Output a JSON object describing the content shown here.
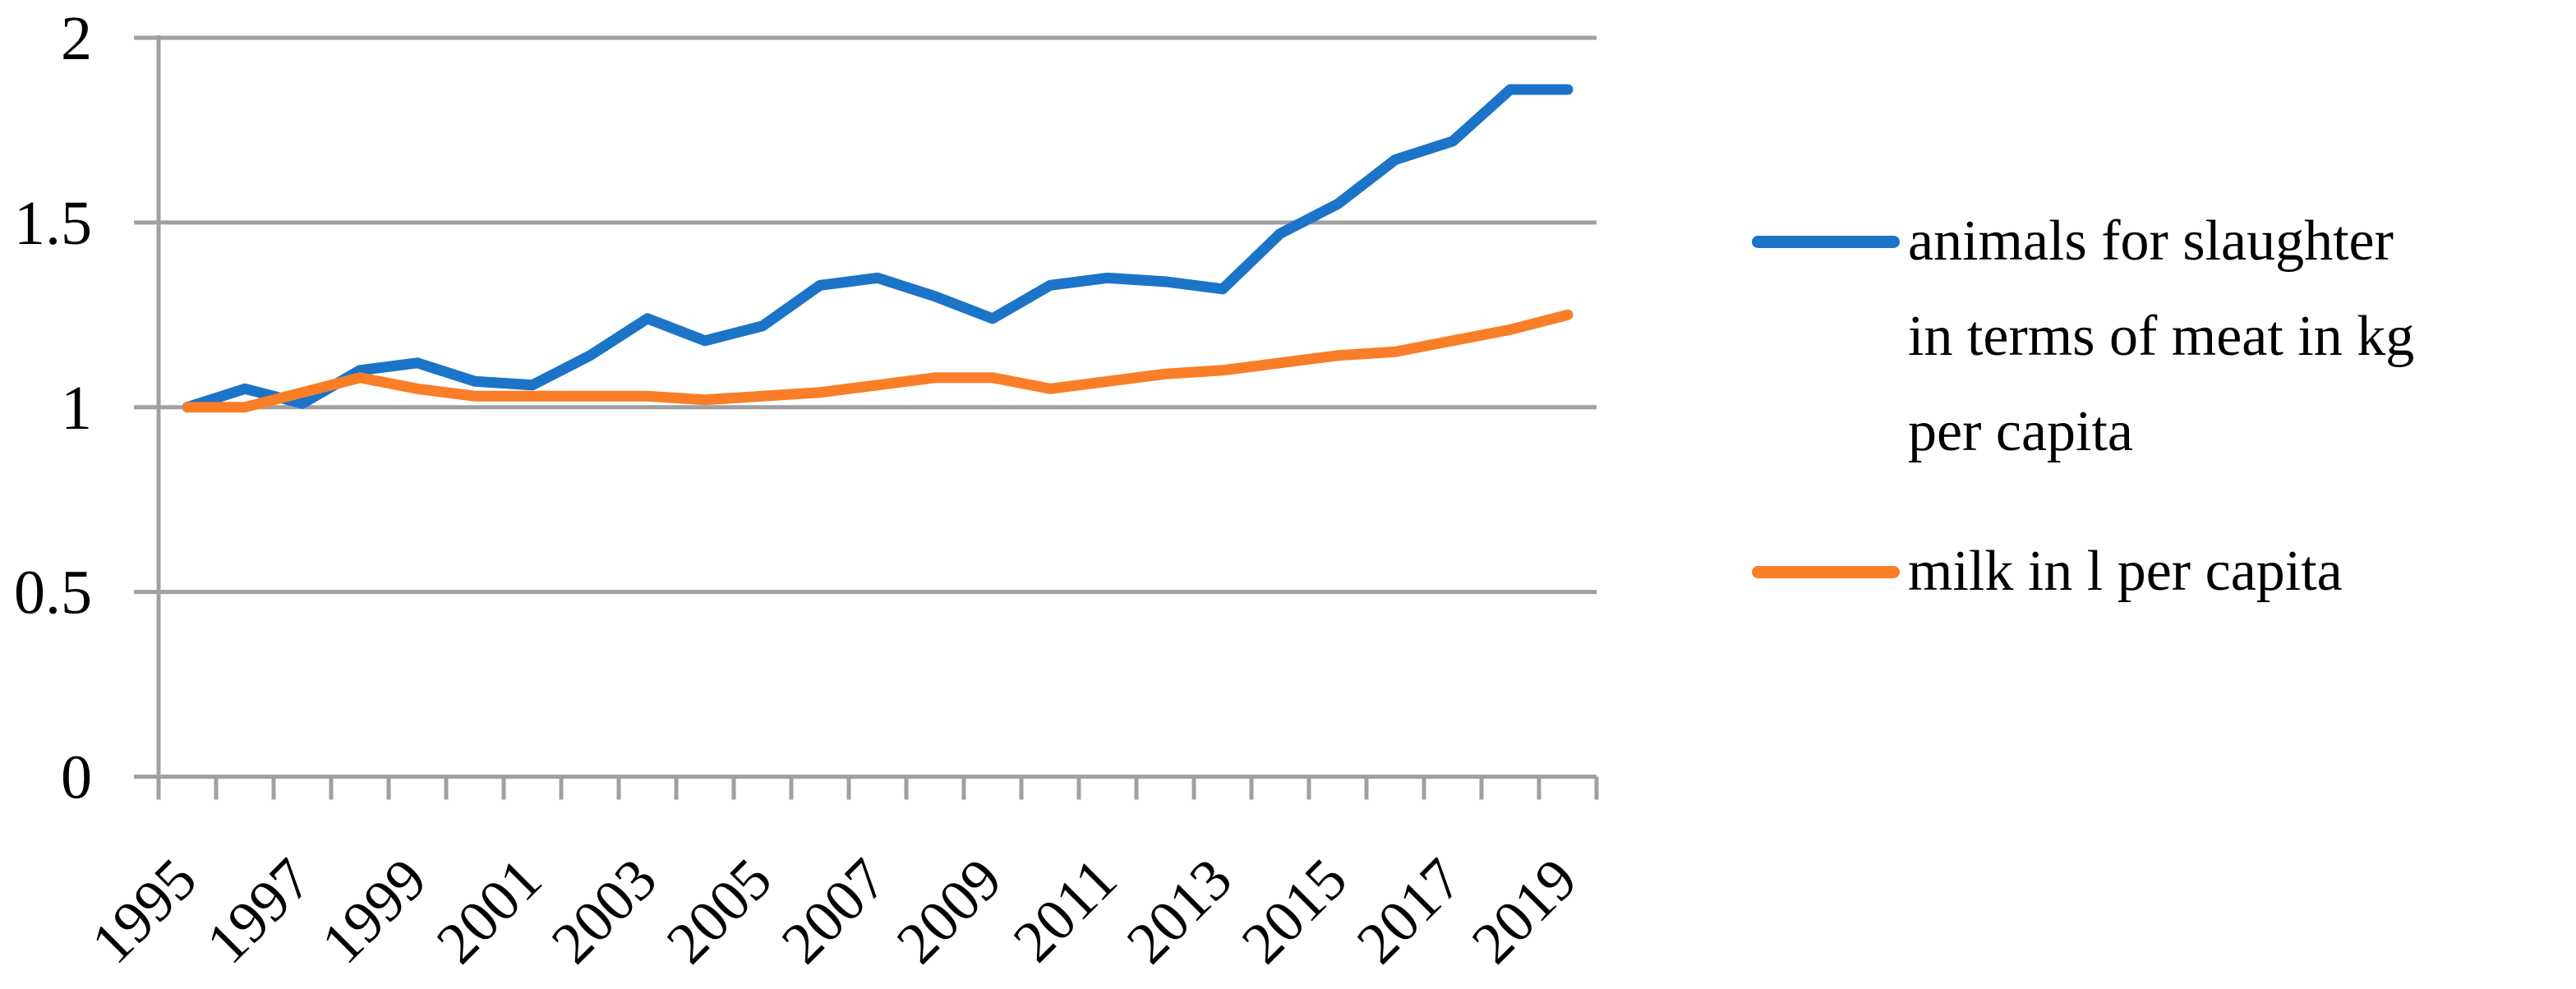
{
  "chart_data": {
    "type": "line",
    "title": "",
    "xlabel": "",
    "ylabel": "",
    "x": [
      1995,
      1996,
      1997,
      1998,
      1999,
      2000,
      2001,
      2002,
      2003,
      2004,
      2005,
      2006,
      2007,
      2008,
      2009,
      2010,
      2011,
      2012,
      2013,
      2014,
      2015,
      2016,
      2017,
      2018,
      2019
    ],
    "series": [
      {
        "name": "animals for slaughter in terms of meat in kg per capita",
        "label_lines": [
          "animals for slaughter",
          "in terms of meat in kg",
          "per capita"
        ],
        "color": "#1B74C8",
        "values": [
          1.0,
          1.05,
          1.01,
          1.1,
          1.12,
          1.07,
          1.06,
          1.14,
          1.24,
          1.18,
          1.22,
          1.33,
          1.35,
          1.3,
          1.24,
          1.33,
          1.35,
          1.34,
          1.32,
          1.47,
          1.55,
          1.67,
          1.72,
          1.86,
          1.86
        ]
      },
      {
        "name": "milk in l per capita",
        "label_lines": [
          "milk in l per capita"
        ],
        "color": "#F97E27",
        "values": [
          1.0,
          1.0,
          1.04,
          1.08,
          1.05,
          1.03,
          1.03,
          1.03,
          1.03,
          1.02,
          1.03,
          1.04,
          1.06,
          1.08,
          1.08,
          1.05,
          1.07,
          1.09,
          1.1,
          1.12,
          1.14,
          1.15,
          1.18,
          1.21,
          1.25
        ]
      }
    ],
    "ylim": [
      0,
      2
    ],
    "ytick_values": [
      0,
      0.5,
      1,
      1.5,
      2
    ],
    "ytick_labels": [
      "0",
      "0.5",
      "1",
      "1.5",
      "2"
    ],
    "xtick_labels": [
      "1995",
      "1997",
      "1999",
      "2001",
      "2003",
      "2005",
      "2007",
      "2009",
      "2011",
      "2013",
      "2015",
      "2017",
      "2019"
    ],
    "grid": true,
    "legend_position": "right",
    "axis_color": "#A0A0A0",
    "text_color": "#000000",
    "background_color": "#FFFFFF"
  }
}
